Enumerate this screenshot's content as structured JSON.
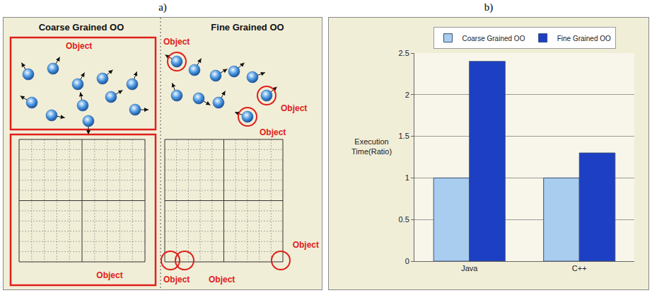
{
  "panel_labels": [
    "a)",
    "b)"
  ],
  "diagram": {
    "columns": [
      {
        "title": "Coarse Grained OO",
        "labels": [
          "Object",
          "Object"
        ]
      },
      {
        "title": "Fine Grained OO",
        "labels": [
          "Object",
          "Object",
          "Object",
          "Object",
          "Object",
          "Object"
        ]
      }
    ]
  },
  "chart_data": {
    "type": "bar",
    "categories": [
      "Java",
      "C++"
    ],
    "y_label": "Execution Time(Ratio)",
    "series": [
      {
        "name": "Coarse Grained OO",
        "color": "#a9cdee",
        "values": [
          1,
          1
        ]
      },
      {
        "name": "Fine Grained OO",
        "color": "#1c3fc4",
        "values": [
          2.4,
          1.3
        ]
      }
    ],
    "ylim": [
      0,
      2.5
    ],
    "yticks": [
      0,
      0.5,
      1,
      1.5,
      2,
      2.5
    ],
    "grid": true,
    "legend": "top"
  }
}
